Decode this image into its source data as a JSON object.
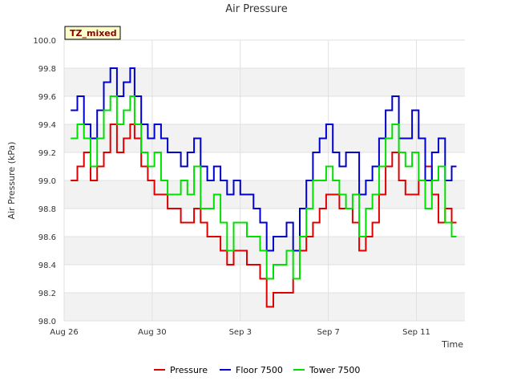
{
  "chart_data": {
    "type": "line",
    "title": "Air Pressure",
    "xlabel": "Time",
    "ylabel": "Air Pressure (kPa)",
    "badge": "TZ_mixed",
    "xlim": [
      0,
      18.2
    ],
    "ylim": [
      98.0,
      100.0
    ],
    "yticks": [
      98.0,
      98.2,
      98.4,
      98.6,
      98.8,
      99.0,
      99.2,
      99.4,
      99.6,
      99.8,
      100.0
    ],
    "ytick_labels": [
      "98.0",
      "98.2",
      "98.4",
      "98.6",
      "98.8",
      "99.0",
      "99.2",
      "99.4",
      "99.6",
      "99.8",
      "100.0"
    ],
    "xticks": [
      0,
      4,
      8,
      12,
      16
    ],
    "xtick_labels": [
      "Aug 26",
      "Aug 30",
      "Sep 3",
      "Sep 7",
      "Sep 11"
    ],
    "grid": true,
    "legend_position": "bottom",
    "series": [
      {
        "name": "Pressure",
        "color": "#e00000",
        "x": [
          0.3,
          0.6,
          0.9,
          1.2,
          1.5,
          1.8,
          2.1,
          2.4,
          2.7,
          3.0,
          3.2,
          3.5,
          3.8,
          4.1,
          4.4,
          4.7,
          5.0,
          5.3,
          5.6,
          5.9,
          6.2,
          6.5,
          6.8,
          7.1,
          7.4,
          7.7,
          8.0,
          8.3,
          8.6,
          8.9,
          9.2,
          9.5,
          9.8,
          10.1,
          10.4,
          10.7,
          11.0,
          11.3,
          11.6,
          11.9,
          12.2,
          12.5,
          12.8,
          13.1,
          13.4,
          13.7,
          14.0,
          14.3,
          14.6,
          14.9,
          15.2,
          15.5,
          15.8,
          16.1,
          16.4,
          16.7,
          17.0,
          17.3,
          17.6
        ],
        "values": [
          99.0,
          99.1,
          99.2,
          99.0,
          99.1,
          99.2,
          99.4,
          99.2,
          99.3,
          99.4,
          99.3,
          99.1,
          99.0,
          98.9,
          98.9,
          98.8,
          98.8,
          98.7,
          98.7,
          98.8,
          98.7,
          98.6,
          98.6,
          98.5,
          98.4,
          98.5,
          98.5,
          98.4,
          98.4,
          98.3,
          98.1,
          98.2,
          98.2,
          98.2,
          98.3,
          98.5,
          98.6,
          98.7,
          98.8,
          98.9,
          98.9,
          98.8,
          98.8,
          98.7,
          98.5,
          98.6,
          98.7,
          98.9,
          99.1,
          99.2,
          99.0,
          98.9,
          98.9,
          99.0,
          99.1,
          98.9,
          98.7,
          98.8,
          98.7
        ]
      },
      {
        "name": "Floor 7500",
        "color": "#0000cc",
        "x": [
          0.3,
          0.6,
          0.9,
          1.2,
          1.5,
          1.8,
          2.1,
          2.4,
          2.7,
          3.0,
          3.2,
          3.5,
          3.8,
          4.1,
          4.4,
          4.7,
          5.0,
          5.3,
          5.6,
          5.9,
          6.2,
          6.5,
          6.8,
          7.1,
          7.4,
          7.7,
          8.0,
          8.3,
          8.6,
          8.9,
          9.2,
          9.5,
          9.8,
          10.1,
          10.4,
          10.7,
          11.0,
          11.3,
          11.6,
          11.9,
          12.2,
          12.5,
          12.8,
          13.1,
          13.4,
          13.7,
          14.0,
          14.3,
          14.6,
          14.9,
          15.2,
          15.5,
          15.8,
          16.1,
          16.4,
          16.7,
          17.0,
          17.3,
          17.6
        ],
        "values": [
          99.5,
          99.6,
          99.4,
          99.3,
          99.5,
          99.7,
          99.8,
          99.6,
          99.7,
          99.8,
          99.6,
          99.4,
          99.3,
          99.4,
          99.3,
          99.2,
          99.2,
          99.1,
          99.2,
          99.3,
          99.1,
          99.0,
          99.1,
          99.0,
          98.9,
          99.0,
          98.9,
          98.9,
          98.8,
          98.7,
          98.5,
          98.6,
          98.6,
          98.7,
          98.5,
          98.8,
          99.0,
          99.2,
          99.3,
          99.4,
          99.2,
          99.1,
          99.2,
          99.2,
          98.9,
          99.0,
          99.1,
          99.3,
          99.5,
          99.6,
          99.3,
          99.3,
          99.5,
          99.3,
          99.0,
          99.2,
          99.3,
          99.0,
          99.1
        ]
      },
      {
        "name": "Tower 7500",
        "color": "#00e000",
        "x": [
          0.3,
          0.6,
          0.9,
          1.2,
          1.5,
          1.8,
          2.1,
          2.4,
          2.7,
          3.0,
          3.2,
          3.5,
          3.8,
          4.1,
          4.4,
          4.7,
          5.0,
          5.3,
          5.6,
          5.9,
          6.2,
          6.5,
          6.8,
          7.1,
          7.4,
          7.7,
          8.0,
          8.3,
          8.6,
          8.9,
          9.2,
          9.5,
          9.8,
          10.1,
          10.4,
          10.7,
          11.0,
          11.3,
          11.6,
          11.9,
          12.2,
          12.5,
          12.8,
          13.1,
          13.4,
          13.7,
          14.0,
          14.3,
          14.6,
          14.9,
          15.2,
          15.5,
          15.8,
          16.1,
          16.4,
          16.7,
          17.0,
          17.3,
          17.6
        ],
        "values": [
          99.3,
          99.4,
          99.3,
          99.1,
          99.3,
          99.5,
          99.6,
          99.4,
          99.5,
          99.6,
          99.4,
          99.2,
          99.1,
          99.2,
          99.0,
          98.9,
          98.9,
          99.0,
          98.9,
          99.1,
          98.8,
          98.8,
          98.9,
          98.7,
          98.5,
          98.7,
          98.7,
          98.6,
          98.6,
          98.5,
          98.3,
          98.4,
          98.4,
          98.5,
          98.3,
          98.6,
          98.8,
          99.0,
          99.0,
          99.1,
          99.0,
          98.9,
          98.8,
          98.9,
          98.6,
          98.8,
          98.9,
          99.1,
          99.3,
          99.4,
          99.2,
          99.1,
          99.2,
          99.0,
          98.8,
          99.0,
          99.1,
          98.7,
          98.6
        ]
      }
    ]
  }
}
